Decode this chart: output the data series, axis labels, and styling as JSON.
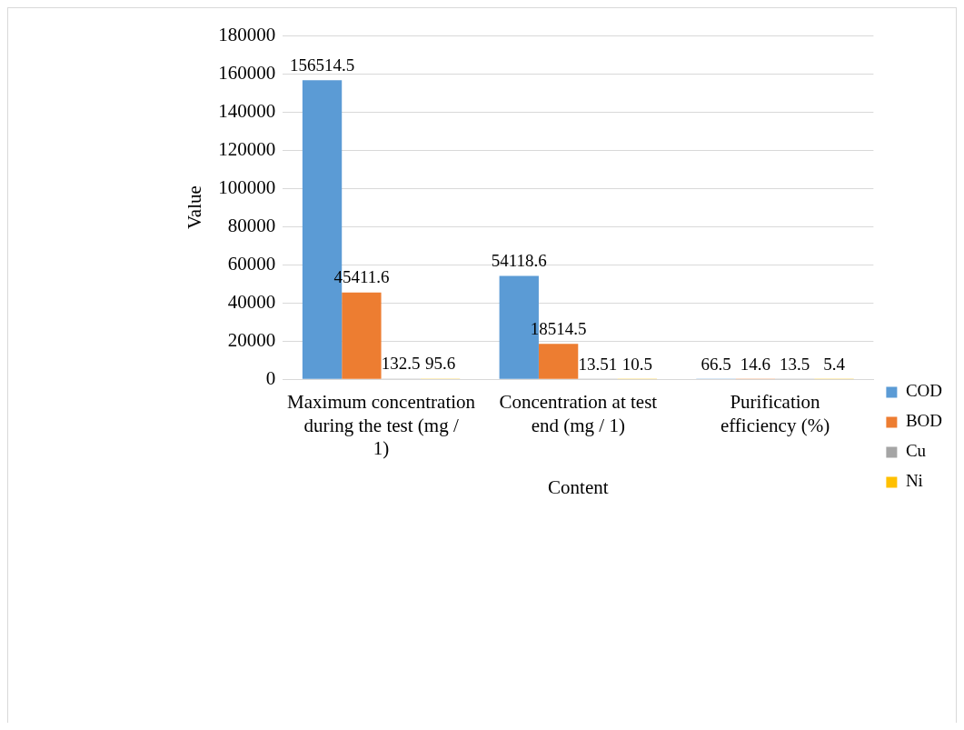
{
  "chart_data": {
    "type": "bar",
    "xlabel": "Content",
    "ylabel": "Value",
    "categories": [
      "Maximum concentration during the test (mg / 1)",
      "Concentration at test end (mg / 1)",
      "Purification efficiency (%)"
    ],
    "series": [
      {
        "name": "COD",
        "color": "#5b9bd5",
        "values": [
          156514.5,
          54118.6,
          66.5
        ]
      },
      {
        "name": "BOD",
        "color": "#ed7d31",
        "values": [
          45411.6,
          18514.5,
          14.6
        ]
      },
      {
        "name": "Cu",
        "color": "#a5a5a5",
        "values": [
          132.5,
          13.51,
          13.5
        ]
      },
      {
        "name": "Ni",
        "color": "#ffc000",
        "values": [
          95.6,
          10.5,
          5.4
        ]
      }
    ],
    "ylim": [
      0,
      180000
    ],
    "yticks": [
      0,
      20000,
      40000,
      60000,
      80000,
      100000,
      120000,
      140000,
      160000,
      180000
    ],
    "grid": "y",
    "legend": "right",
    "data_labels": true
  }
}
